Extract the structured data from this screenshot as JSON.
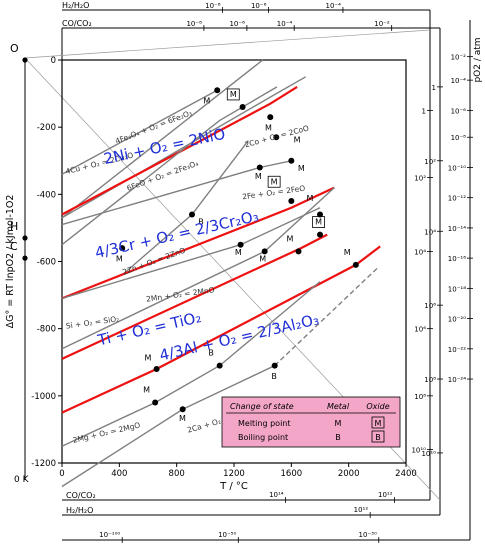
{
  "chart_data": {
    "type": "line",
    "title": "",
    "xlabel": "T / °C",
    "ylabel": "ΔG° = RT lnpO2 / kJmol-1O2",
    "xlim": [
      0,
      2400
    ],
    "ylim": [
      -1200,
      0
    ],
    "xticks": [
      0,
      400,
      800,
      1200,
      1600,
      2000,
      2400
    ],
    "yticks": [
      0,
      -200,
      -400,
      -600,
      -800,
      -1000,
      -1200
    ],
    "grid": false,
    "kelvin_zero_label": "0 K",
    "left_markers": [
      {
        "label": "O",
        "y": 0
      },
      {
        "label": "H",
        "y": -530
      },
      {
        "label": "C",
        "y": -590
      }
    ],
    "series": [
      {
        "name": "4Cu + O2 = 2Cu2O",
        "color": "#808080",
        "emphasis": false,
        "points": [
          [
            0,
            -340
          ],
          [
            1083,
            -90
          ]
        ]
      },
      {
        "name": "4Fe3O4 + O2 = 6Fe2O3",
        "color": "#808080",
        "emphasis": false,
        "points": [
          [
            0,
            -470
          ],
          [
            1400,
            0
          ]
        ]
      },
      {
        "name": "2Co + O2 = 2CoO",
        "color": "#808080",
        "emphasis": false,
        "points": [
          [
            0,
            -470
          ],
          [
            1495,
            -100
          ],
          [
            1700,
            -50
          ]
        ]
      },
      {
        "name": "2Ni + O2 = 2NiO",
        "color": "#ee1111",
        "emphasis": true,
        "points": [
          [
            0,
            -460
          ],
          [
            1453,
            -130
          ],
          [
            1640,
            -80
          ]
        ]
      },
      {
        "name": "6FeO + O2 = 2Fe3O4",
        "color": "#808080",
        "emphasis": false,
        "points": [
          [
            0,
            -550
          ],
          [
            1100,
            -180
          ],
          [
            1500,
            -80
          ]
        ]
      },
      {
        "name": "2Fe + O2 = 2FeO",
        "color": "#808080",
        "emphasis": false,
        "points": [
          [
            0,
            -490
          ],
          [
            1380,
            -320
          ],
          [
            1600,
            -300
          ]
        ]
      },
      {
        "name": "2Zn + O2 = 2ZnO",
        "color": "#808080",
        "emphasis": false,
        "points": [
          [
            420,
            -640
          ],
          [
            907,
            -460
          ],
          [
            1300,
            -240
          ]
        ]
      },
      {
        "name": "4/3Cr + O2 = 2/3Cr2O3",
        "color": "#ee1111",
        "emphasis": true,
        "points": [
          [
            0,
            -710
          ],
          [
            1600,
            -440
          ],
          [
            1900,
            -380
          ]
        ]
      },
      {
        "name": "2Mn + O2 = 2MnO",
        "color": "#808080",
        "emphasis": false,
        "points": [
          [
            0,
            -710
          ],
          [
            1246,
            -550
          ],
          [
            1800,
            -440
          ]
        ]
      },
      {
        "name": "Si + O2 = SiO2",
        "color": "#808080",
        "emphasis": false,
        "points": [
          [
            0,
            -860
          ],
          [
            1414,
            -570
          ],
          [
            1900,
            -380
          ]
        ]
      },
      {
        "name": "Ti + O2 = TiO2",
        "color": "#ee1111",
        "emphasis": true,
        "points": [
          [
            0,
            -890
          ],
          [
            1668,
            -560
          ],
          [
            1850,
            -520
          ]
        ]
      },
      {
        "name": "4/3Al + O2 = 2/3Al2O3",
        "color": "#ee1111",
        "emphasis": true,
        "points": [
          [
            0,
            -1050
          ],
          [
            660,
            -920
          ],
          [
            2050,
            -610
          ],
          [
            2220,
            -555
          ]
        ]
      },
      {
        "name": "2Mg + O2 = 2MgO",
        "color": "#808080",
        "emphasis": false,
        "points": [
          [
            0,
            -1150
          ],
          [
            650,
            -1020
          ],
          [
            1100,
            -910
          ],
          [
            1800,
            -660
          ]
        ]
      },
      {
        "name": "2Ca + O2 = 2CaO",
        "color": "#808080",
        "emphasis": false,
        "points": [
          [
            0,
            -1270
          ],
          [
            842,
            -1040
          ],
          [
            1484,
            -910
          ]
        ]
      },
      {
        "name": "2Ca + O2 = 2CaO (extension)",
        "color": "#808080",
        "emphasis": false,
        "dashed": true,
        "points": [
          [
            1484,
            -910
          ],
          [
            2200,
            -620
          ]
        ]
      }
    ],
    "gray_labels": [
      {
        "text": "4Cu + O₂ = 2Cu₂O",
        "x": 30,
        "y": -340,
        "angle": -14
      },
      {
        "text": "4Fe₃O₄ + O₂ = 6Fe₂O₃",
        "x": 380,
        "y": -250,
        "angle": -21
      },
      {
        "text": "2Co + O₂ = 2CoO",
        "x": 1280,
        "y": -260,
        "angle": -15
      },
      {
        "text": "6FeO + O₂ = 2Fe₃O₄",
        "x": 460,
        "y": -390,
        "angle": -20
      },
      {
        "text": "2Fe + O₂ = 2FeO",
        "x": 1260,
        "y": -415,
        "angle": -8
      },
      {
        "text": "2Zn + O₂ = 2ZnO",
        "x": 430,
        "y": -640,
        "angle": -20
      },
      {
        "text": "2Mn + O₂ = 2MnO",
        "x": 590,
        "y": -720,
        "angle": -8
      },
      {
        "text": "Si + O₂ = SiO₂",
        "x": 30,
        "y": -800,
        "angle": -8
      },
      {
        "text": "2Ca + O₂ = 2CaO",
        "x": 880,
        "y": -1110,
        "angle": -16
      },
      {
        "text": "2Mg + O₂ = 2MgO",
        "x": 80,
        "y": -1140,
        "angle": -13
      }
    ],
    "blue_labels": [
      {
        "text": "2Ni + O₂ = 2NiO",
        "x": 300,
        "y": -310,
        "angle": -12
      },
      {
        "text": "4/3Cr + O₂ = 2/3Cr₂O₃",
        "x": 240,
        "y": -590,
        "angle": -13
      },
      {
        "text": "Ti + O₂ = TiO₂",
        "x": 260,
        "y": -850,
        "angle": -13
      },
      {
        "text": "4/3Al + O₂ = 2/3Al₂O₃",
        "x": 690,
        "y": -895,
        "angle": -13
      }
    ],
    "change_points": [
      {
        "type": "M",
        "x": 1083,
        "y": -90,
        "lx": 1010,
        "ly": -130,
        "boxed": false
      },
      {
        "type": "M",
        "x": 1260,
        "y": -140,
        "lx": 1195,
        "ly": -110,
        "boxed": true
      },
      {
        "type": "M",
        "x": 1453,
        "y": -170,
        "lx": 1440,
        "ly": -210,
        "boxed": false
      },
      {
        "type": "M",
        "x": 1495,
        "y": -230,
        "lx": 1640,
        "ly": -245,
        "boxed": false
      },
      {
        "type": "M",
        "x": 1380,
        "y": -320,
        "lx": 1370,
        "ly": -355,
        "boxed": false
      },
      {
        "type": "M",
        "x": 1600,
        "y": -300,
        "lx": 1670,
        "ly": -330,
        "boxed": false
      },
      {
        "type": "M",
        "x": 1600,
        "y": -420,
        "lx": 1480,
        "ly": -370,
        "boxed": true
      },
      {
        "type": "M",
        "x": 1800,
        "y": -460,
        "lx": 1730,
        "ly": -420,
        "boxed": false
      },
      {
        "type": "B",
        "x": 907,
        "y": -460,
        "lx": 970,
        "ly": -490,
        "boxed": false
      },
      {
        "type": "M",
        "x": 420,
        "y": -560,
        "lx": 400,
        "ly": -600,
        "boxed": false
      },
      {
        "type": "M",
        "x": 1246,
        "y": -550,
        "lx": 1230,
        "ly": -580,
        "boxed": false
      },
      {
        "type": "M",
        "x": 1414,
        "y": -570,
        "lx": 1400,
        "ly": -600,
        "boxed": false
      },
      {
        "type": "M",
        "x": 1650,
        "y": -570,
        "lx": 1590,
        "ly": -540,
        "boxed": false
      },
      {
        "type": "M",
        "x": 1800,
        "y": -520,
        "lx": 1790,
        "ly": -490,
        "boxed": true
      },
      {
        "type": "M",
        "x": 660,
        "y": -920,
        "lx": 600,
        "ly": -895,
        "boxed": false
      },
      {
        "type": "M",
        "x": 2050,
        "y": -610,
        "lx": 1990,
        "ly": -580,
        "boxed": false
      },
      {
        "type": "B",
        "x": 1100,
        "y": -910,
        "lx": 1040,
        "ly": -880,
        "boxed": false
      },
      {
        "type": "M",
        "x": 650,
        "y": -1020,
        "lx": 590,
        "ly": -990,
        "boxed": false
      },
      {
        "type": "M",
        "x": 842,
        "y": -1040,
        "lx": 840,
        "ly": -1075,
        "boxed": false
      },
      {
        "type": "B",
        "x": 1484,
        "y": -910,
        "lx": 1480,
        "ly": -950,
        "boxed": false
      }
    ],
    "top_axes": [
      {
        "label": "H₂/H₂O",
        "ticks": [
          {
            "label": "10⁻⁸",
            "x": 1120
          },
          {
            "label": "10⁻⁶",
            "x": 1440
          },
          {
            "label": "10⁻⁴",
            "x": 1960
          }
        ]
      },
      {
        "label": "CO/CO₂",
        "ticks": [
          {
            "label": "10⁻⁸",
            "x": 990
          },
          {
            "label": "10⁻⁶",
            "x": 1290
          },
          {
            "label": "10⁻⁴",
            "x": 1620
          },
          {
            "label": "10⁻²",
            "x": 2300
          }
        ]
      }
    ],
    "bottom_axes": [
      {
        "label": "CO/CO₂",
        "ticks": [
          {
            "label": "10¹⁴",
            "x": 1560
          },
          {
            "label": "10¹²",
            "x": 2320
          }
        ]
      },
      {
        "label": "H₂/H₂O",
        "ticks": [
          {
            "label": "10¹²",
            "x": 2150
          }
        ]
      },
      {
        "label": "",
        "ticks": [
          {
            "label": "10⁻¹⁰⁰",
            "x": 420
          },
          {
            "label": "10⁻⁵⁰",
            "x": 1230
          },
          {
            "label": "10⁻³⁰",
            "x": 2210
          }
        ]
      }
    ],
    "right_axes": [
      {
        "label": "",
        "ticks": [
          {
            "label": "1",
            "y": -150
          },
          {
            "label": "10²",
            "y": -350
          },
          {
            "label": "10⁴",
            "y": -570
          },
          {
            "label": "10⁶",
            "y": -800
          },
          {
            "label": "10⁸",
            "y": -1000
          },
          {
            "label": "10¹⁰",
            "y": -1160
          }
        ]
      },
      {
        "label": "",
        "ticks": [
          {
            "label": "1",
            "y": -80
          },
          {
            "label": "10²",
            "y": -300
          },
          {
            "label": "10⁴",
            "y": -510
          },
          {
            "label": "10⁶",
            "y": -730
          },
          {
            "label": "10⁸",
            "y": -950
          },
          {
            "label": "10¹⁰",
            "y": -1170
          }
        ]
      },
      {
        "label": "pO2 / atm",
        "ticks": [
          {
            "label": "10⁻²",
            "y": 10
          },
          {
            "label": "10⁻⁴",
            "y": -60
          },
          {
            "label": "10⁻⁶",
            "y": -150
          },
          {
            "label": "10⁻⁸",
            "y": -230
          },
          {
            "label": "10⁻¹⁰",
            "y": -320
          },
          {
            "label": "10⁻¹²",
            "y": -410
          },
          {
            "label": "10⁻¹⁴",
            "y": -500
          },
          {
            "label": "10⁻¹⁶",
            "y": -590
          },
          {
            "label": "10⁻¹⁸",
            "y": -680
          },
          {
            "label": "10⁻²⁰",
            "y": -770
          },
          {
            "label": "10⁻²²",
            "y": -860
          },
          {
            "label": "10⁻²⁴",
            "y": -950
          }
        ]
      }
    ],
    "legend": {
      "headers": [
        "Change of state",
        "Metal",
        "Oxide"
      ],
      "rows": [
        {
          "label": "Melting point",
          "metal": "M",
          "oxide": "M"
        },
        {
          "label": "Boiling point",
          "metal": "B",
          "oxide": "B"
        }
      ],
      "background": "#f4a6c8"
    }
  }
}
